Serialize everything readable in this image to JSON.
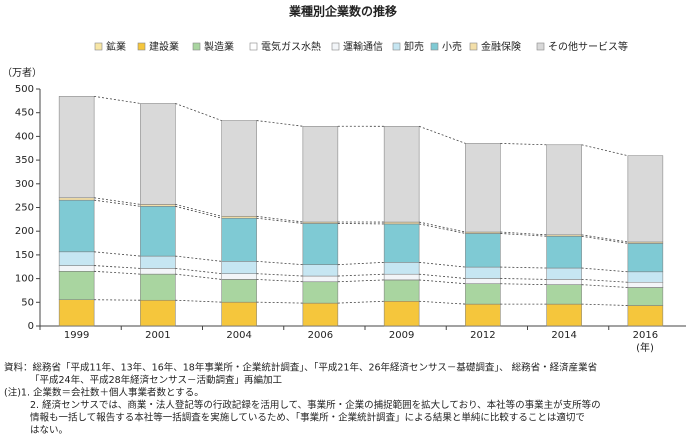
{
  "chart_data": {
    "type": "stacked_bar",
    "title": "業種別企業数の推移",
    "y_unit": "（万者）",
    "x_unit": "(年)",
    "categories": [
      "1999",
      "2001",
      "2004",
      "2006",
      "2009",
      "2012",
      "2014",
      "2016"
    ],
    "series": [
      {
        "name": "鉱業",
        "color": "#f7e6a6",
        "values": [
          0.4,
          0.4,
          0.3,
          0.3,
          0.2,
          0.2,
          0.2,
          0.2
        ]
      },
      {
        "name": "建設業",
        "color": "#f5c63c",
        "values": [
          55,
          54,
          50,
          48,
          52,
          46,
          46,
          43
        ]
      },
      {
        "name": "製造業",
        "color": "#a9d5a0",
        "values": [
          60,
          55,
          48,
          45,
          45,
          43,
          41,
          38
        ]
      },
      {
        "name": "電気ガス水熱",
        "color": "#ffffff",
        "values": [
          0.1,
          0.1,
          0.1,
          0.1,
          0.1,
          0.1,
          0.1,
          0.1
        ]
      },
      {
        "name": "運輸通信",
        "color": "#f2f5f8",
        "values": [
          12,
          12,
          12,
          12,
          12,
          11,
          11,
          11
        ]
      },
      {
        "name": "卸売",
        "color": "#c6e6f2",
        "values": [
          29,
          26,
          26,
          24,
          25,
          24,
          24,
          22
        ]
      },
      {
        "name": "小売",
        "color": "#7fcad4",
        "values": [
          109,
          105,
          91,
          87,
          81,
          71,
          67,
          60
        ]
      },
      {
        "name": "金融保険",
        "color": "#f3dfa9",
        "values": [
          5,
          4,
          4,
          3,
          4,
          3,
          3,
          3
        ]
      },
      {
        "name": "その他サービス等",
        "color": "#d9d9d9",
        "values": [
          214,
          213,
          202,
          202,
          202,
          187,
          190,
          182
        ]
      }
    ],
    "ylim": [
      0,
      500
    ],
    "yticks": [
      0,
      50,
      100,
      150,
      200,
      250,
      300,
      350,
      400,
      450,
      500
    ],
    "notes": [
      "資料：総務省「平成11年、13年、16年、18年事業所・企業統計調査」、「平成21年、26年経済センサス－基礎調査」、 総務省・経済産業省",
      "「平成24年、平成28年経済センサス－活動調査」再編加工",
      "(注)1. 企業数＝会社数＋個人事業者数とする。",
      "2. 経済センサスでは、商業・法人登記等の行政記録を活用して、事業所・企業の捕捉範囲を拡大しており、本社等の事業主が支所等の",
      "情報も一括して報告する本社等一括調査を実施しているため、「事業所・企業統計調査」による結果と単純に比較することは適切で",
      "はない。"
    ]
  }
}
